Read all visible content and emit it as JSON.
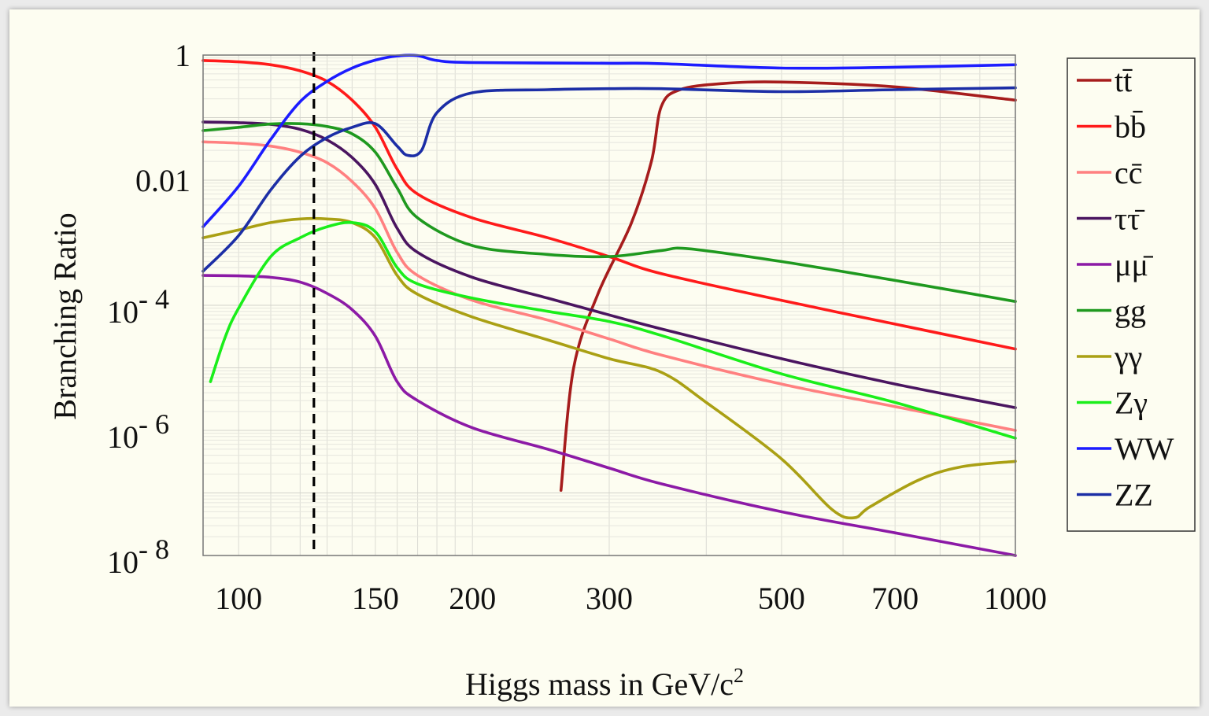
{
  "chart_data": {
    "type": "line",
    "xlabel": "Higgs mass in GeV/c",
    "xlabel_sup": "2",
    "ylabel": "Branching Ratio",
    "xscale": "log",
    "yscale": "log",
    "xlim": [
      90,
      1000
    ],
    "ylim": [
      1e-08,
      1
    ],
    "x_ticks": [
      {
        "value": 100,
        "label": "100"
      },
      {
        "value": 150,
        "label": "150"
      },
      {
        "value": 200,
        "label": "200"
      },
      {
        "value": 300,
        "label": "300"
      },
      {
        "value": 500,
        "label": "500"
      },
      {
        "value": 700,
        "label": "700"
      },
      {
        "value": 1000,
        "label": "1000"
      }
    ],
    "y_ticks": [
      {
        "value": 1,
        "label": "1",
        "exp": ""
      },
      {
        "value": 0.01,
        "label": "0.01",
        "exp": ""
      },
      {
        "value": 0.0001,
        "label": "10",
        "exp": "- 4"
      },
      {
        "value": 1e-06,
        "label": "10",
        "exp": "- 6"
      },
      {
        "value": 1e-08,
        "label": "10",
        "exp": "- 8"
      }
    ],
    "grid": true,
    "legend_position": "right",
    "reference_line": {
      "x": 125,
      "style": "dashed"
    },
    "series": [
      {
        "name": "tt̄",
        "color": "#a61c1c",
        "points": [
          [
            260,
            1.1e-07
          ],
          [
            270,
            1e-05
          ],
          [
            290,
            0.00015
          ],
          [
            320,
            0.002
          ],
          [
            340,
            0.02
          ],
          [
            350,
            0.15
          ],
          [
            370,
            0.28
          ],
          [
            420,
            0.35
          ],
          [
            500,
            0.37
          ],
          [
            700,
            0.31
          ],
          [
            1000,
            0.19
          ]
        ]
      },
      {
        "name": "bb̄",
        "color": "#ff1a1a",
        "points": [
          [
            90,
            0.82
          ],
          [
            100,
            0.78
          ],
          [
            110,
            0.7
          ],
          [
            120,
            0.56
          ],
          [
            130,
            0.38
          ],
          [
            140,
            0.19
          ],
          [
            150,
            0.07
          ],
          [
            160,
            0.015
          ],
          [
            170,
            0.006
          ],
          [
            200,
            0.0025
          ],
          [
            250,
            0.0012
          ],
          [
            300,
            0.0006
          ],
          [
            350,
            0.00032
          ],
          [
            500,
            0.00012
          ],
          [
            700,
            5e-05
          ],
          [
            1000,
            2e-05
          ]
        ]
      },
      {
        "name": "cc̄",
        "color": "#ff8080",
        "points": [
          [
            90,
            0.041
          ],
          [
            100,
            0.039
          ],
          [
            110,
            0.035
          ],
          [
            120,
            0.028
          ],
          [
            130,
            0.019
          ],
          [
            140,
            0.0095
          ],
          [
            150,
            0.0035
          ],
          [
            160,
            0.0007
          ],
          [
            170,
            0.0003
          ],
          [
            200,
            0.00012
          ],
          [
            250,
            5.8e-05
          ],
          [
            300,
            2.9e-05
          ],
          [
            350,
            1.6e-05
          ],
          [
            500,
            5.5e-06
          ],
          [
            700,
            2.4e-06
          ],
          [
            1000,
            1e-06
          ]
        ]
      },
      {
        "name": "ττ̄",
        "color": "#4a1560",
        "points": [
          [
            90,
            0.085
          ],
          [
            100,
            0.083
          ],
          [
            110,
            0.078
          ],
          [
            120,
            0.065
          ],
          [
            130,
            0.044
          ],
          [
            140,
            0.023
          ],
          [
            150,
            0.0085
          ],
          [
            160,
            0.0017
          ],
          [
            170,
            0.0007
          ],
          [
            200,
            0.00028
          ],
          [
            250,
            0.00013
          ],
          [
            300,
            7e-05
          ],
          [
            350,
            4.2e-05
          ],
          [
            500,
            1.4e-05
          ],
          [
            700,
            5.5e-06
          ],
          [
            1000,
            2.3e-06
          ]
        ]
      },
      {
        "name": "μμ̄",
        "color": "#8c1aa6",
        "points": [
          [
            90,
            0.0003
          ],
          [
            100,
            0.000295
          ],
          [
            110,
            0.00028
          ],
          [
            120,
            0.000235
          ],
          [
            130,
            0.000155
          ],
          [
            140,
            8.5e-05
          ],
          [
            150,
            3.2e-05
          ],
          [
            160,
            6e-06
          ],
          [
            170,
            3e-06
          ],
          [
            200,
            1.1e-06
          ],
          [
            250,
            5e-07
          ],
          [
            300,
            2.5e-07
          ],
          [
            350,
            1.4e-07
          ],
          [
            500,
            5e-08
          ],
          [
            700,
            2.3e-08
          ],
          [
            1000,
            1e-08
          ]
        ]
      },
      {
        "name": "gg",
        "color": "#1f991f",
        "points": [
          [
            90,
            0.062
          ],
          [
            100,
            0.07
          ],
          [
            110,
            0.079
          ],
          [
            120,
            0.08
          ],
          [
            130,
            0.072
          ],
          [
            140,
            0.055
          ],
          [
            150,
            0.028
          ],
          [
            160,
            0.0075
          ],
          [
            170,
            0.0025
          ],
          [
            200,
            0.0009
          ],
          [
            250,
            0.00065
          ],
          [
            300,
            0.0006
          ],
          [
            350,
            0.00075
          ],
          [
            380,
            0.0008
          ],
          [
            500,
            0.0005
          ],
          [
            700,
            0.00025
          ],
          [
            1000,
            0.000115
          ]
        ]
      },
      {
        "name": "γγ",
        "color": "#aaa014",
        "points": [
          [
            90,
            0.0012
          ],
          [
            100,
            0.0016
          ],
          [
            110,
            0.0021
          ],
          [
            120,
            0.0024
          ],
          [
            130,
            0.0024
          ],
          [
            140,
            0.0021
          ],
          [
            150,
            0.0012
          ],
          [
            160,
            0.0003
          ],
          [
            170,
            0.00015
          ],
          [
            200,
            6.5e-05
          ],
          [
            250,
            2.8e-05
          ],
          [
            300,
            1.4e-05
          ],
          [
            350,
            8.5e-06
          ],
          [
            400,
            2.8e-06
          ],
          [
            500,
            3.5e-07
          ],
          [
            580,
            5.5e-08
          ],
          [
            620,
            4e-08
          ],
          [
            650,
            6e-08
          ],
          [
            750,
            1.6e-07
          ],
          [
            850,
            2.6e-07
          ],
          [
            1000,
            3.2e-07
          ]
        ]
      },
      {
        "name": "Zγ",
        "color": "#1aee1a",
        "points": [
          [
            92,
            6e-06
          ],
          [
            96,
            3e-05
          ],
          [
            100,
            9e-05
          ],
          [
            110,
            0.0006
          ],
          [
            120,
            0.0012
          ],
          [
            130,
            0.0018
          ],
          [
            140,
            0.0021
          ],
          [
            150,
            0.0015
          ],
          [
            160,
            0.0004
          ],
          [
            170,
            0.00022
          ],
          [
            200,
            0.00013
          ],
          [
            250,
            8e-05
          ],
          [
            300,
            5.5e-05
          ],
          [
            350,
            3.3e-05
          ],
          [
            500,
            8e-06
          ],
          [
            700,
            2.8e-06
          ],
          [
            1000,
            7.5e-07
          ]
        ]
      },
      {
        "name": "WW",
        "color": "#1c1cff",
        "points": [
          [
            90,
            0.0018
          ],
          [
            100,
            0.008
          ],
          [
            110,
            0.045
          ],
          [
            120,
            0.18
          ],
          [
            130,
            0.38
          ],
          [
            140,
            0.62
          ],
          [
            150,
            0.83
          ],
          [
            160,
            0.97
          ],
          [
            170,
            0.98
          ],
          [
            180,
            0.82
          ],
          [
            200,
            0.76
          ],
          [
            300,
            0.74
          ],
          [
            350,
            0.73
          ],
          [
            500,
            0.62
          ],
          [
            700,
            0.64
          ],
          [
            1000,
            0.7
          ]
        ]
      },
      {
        "name": "ZZ",
        "color": "#1c2ea6",
        "points": [
          [
            90,
            0.00035
          ],
          [
            100,
            0.0013
          ],
          [
            110,
            0.007
          ],
          [
            120,
            0.024
          ],
          [
            130,
            0.048
          ],
          [
            140,
            0.07
          ],
          [
            150,
            0.08
          ],
          [
            160,
            0.035
          ],
          [
            165,
            0.025
          ],
          [
            172,
            0.03
          ],
          [
            180,
            0.12
          ],
          [
            200,
            0.25
          ],
          [
            250,
            0.28
          ],
          [
            300,
            0.29
          ],
          [
            350,
            0.29
          ],
          [
            500,
            0.26
          ],
          [
            700,
            0.28
          ],
          [
            1000,
            0.3
          ]
        ]
      }
    ]
  }
}
